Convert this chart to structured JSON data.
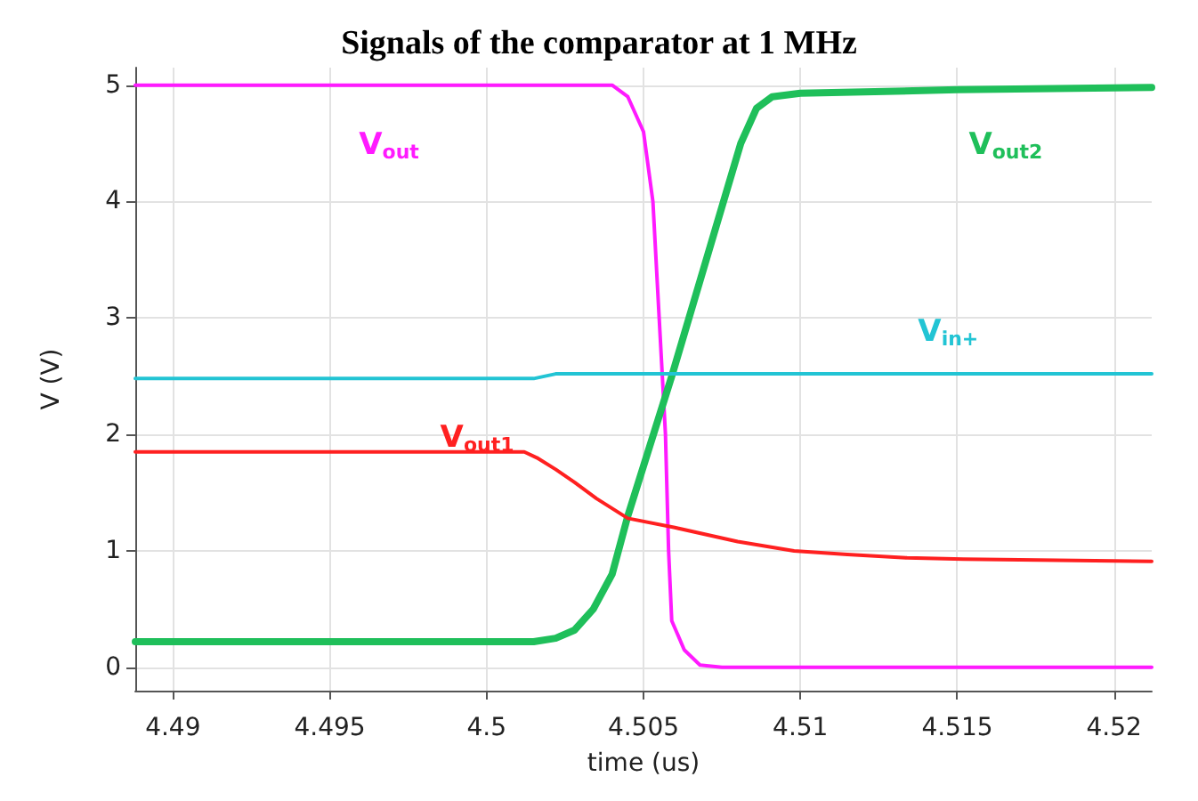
{
  "chart_data": {
    "type": "line",
    "title": "Signals of the comparator at 1 MHz",
    "xlabel": "time (us)",
    "ylabel": "V (V)",
    "xlim": [
      4.4888,
      4.5212
    ],
    "xticks": [
      4.49,
      4.495,
      4.5,
      4.505,
      4.51,
      4.515,
      4.52
    ],
    "ylim": [
      -0.2,
      5.15
    ],
    "yticks": [
      0,
      1,
      2,
      3,
      4,
      5
    ],
    "grid": true,
    "marker": "none",
    "line_style": "solid",
    "series": [
      {
        "name": "V$_{out}$",
        "color": "#ff1aff",
        "x": [
          4.4888,
          4.504,
          4.5045,
          4.505,
          4.5053,
          4.5055,
          4.5057,
          4.5058,
          4.5059,
          4.5063,
          4.5068,
          4.5075,
          4.5212
        ],
        "values": [
          5,
          5,
          4.9,
          4.6,
          4,
          3,
          2,
          1,
          0.4,
          0.15,
          0.02,
          0,
          0
        ]
      },
      {
        "name": "V$_{out2}$",
        "color": "#1fbf5a",
        "x": [
          4.4888,
          4.5015,
          4.5022,
          4.5028,
          4.5034,
          4.504,
          4.5045,
          4.5059,
          4.507,
          4.5081,
          4.5086,
          4.5091,
          4.51,
          4.515,
          4.5212
        ],
        "values": [
          0.22,
          0.22,
          0.25,
          0.32,
          0.5,
          0.8,
          1.3,
          2.5,
          3.5,
          4.5,
          4.8,
          4.9,
          4.93,
          4.96,
          4.98
        ]
      },
      {
        "name": "V$_{in+}$",
        "color": "#22c4d4",
        "x": [
          4.4888,
          4.5015,
          4.5022,
          4.5212
        ],
        "values": [
          2.48,
          2.48,
          2.52,
          2.52
        ]
      },
      {
        "name": "V$_{out1}$",
        "color": "#ff2020",
        "x": [
          4.4888,
          4.5012,
          4.5016,
          4.5022,
          4.5028,
          4.5035,
          4.5045,
          4.506,
          4.508,
          4.5098,
          4.5115,
          4.5134,
          4.5152,
          4.5212
        ],
        "values": [
          1.85,
          1.85,
          1.8,
          1.7,
          1.59,
          1.45,
          1.28,
          1.2,
          1.08,
          1,
          0.97,
          0.94,
          0.93,
          0.91
        ]
      }
    ]
  }
}
